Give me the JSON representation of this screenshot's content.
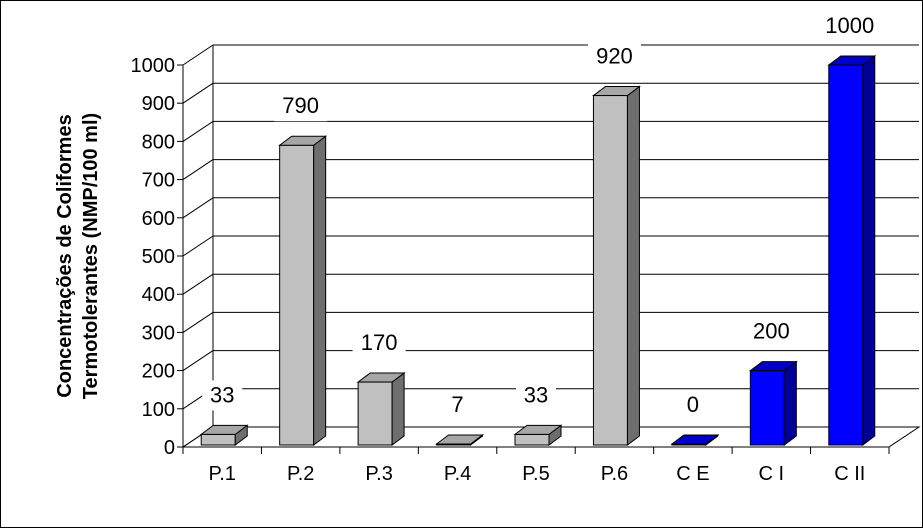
{
  "chart_data": {
    "type": "bar",
    "categories": [
      "P.1",
      "P.2",
      "P.3",
      "P.4",
      "P.5",
      "P.6",
      "C E",
      "C I",
      "C II"
    ],
    "values": [
      33,
      790,
      170,
      7,
      33,
      920,
      0,
      200,
      1000
    ],
    "data_labels": [
      "33",
      "790",
      "170",
      "7",
      "33",
      "920",
      "0",
      "200",
      "1000"
    ],
    "ylabel_lines": [
      "Concentrações de Coliformes",
      "Termotolerantes (NMP/100 ml)"
    ],
    "ylim": [
      0,
      1000
    ],
    "yticks": [
      0,
      100,
      200,
      300,
      400,
      500,
      600,
      700,
      800,
      900,
      1000
    ],
    "grid": true,
    "legend": "none",
    "colors": {
      "gray_front": "#c0c0c0",
      "gray_top": "#a6a6a6",
      "gray_side": "#6e6e6e",
      "blue_front": "#0000ff",
      "blue_top": "#0000c8",
      "blue_side": "#000096"
    },
    "series_color_keys": [
      "gray",
      "gray",
      "gray",
      "gray",
      "gray",
      "gray",
      "blue",
      "blue",
      "blue"
    ]
  }
}
